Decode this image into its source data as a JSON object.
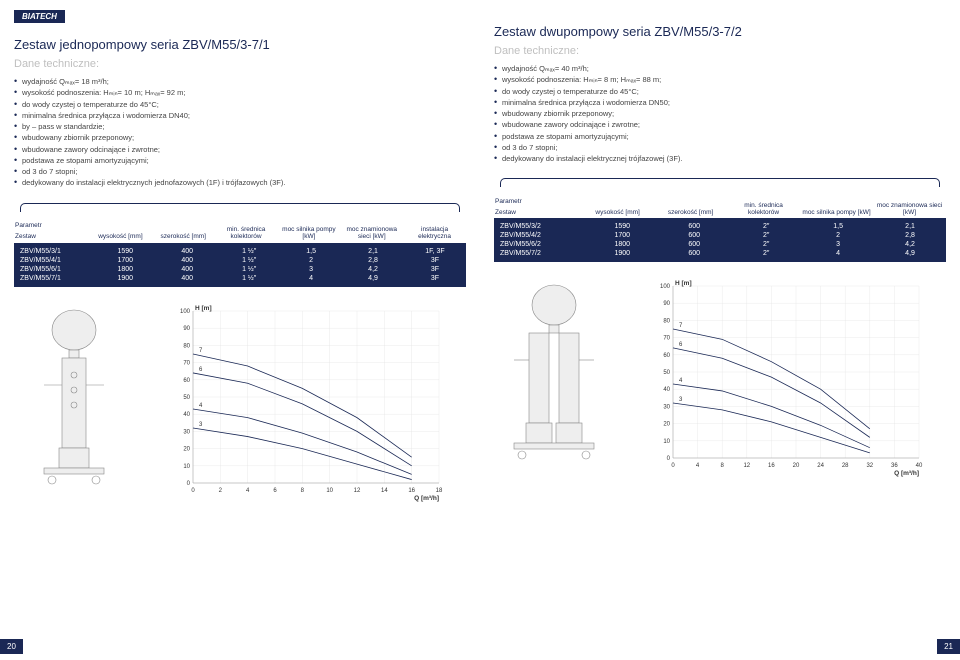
{
  "logo": "BIATECH",
  "left": {
    "title": "Zestaw jednopompowy seria ZBV/M55/3-7/1",
    "subtitle": "Dane techniczne:",
    "bullets": [
      "wydajność Qₘₐₓ= 18 m³/h;",
      "wysokość podnoszenia: Hₘᵢₙ= 10 m; Hₘₐₓ= 92 m;",
      "do wody czystej o temperaturze do 45°C;",
      "minimalna średnica przyłącza i wodomierza DN40;",
      "by – pass w standardzie;",
      "wbudowany zbiornik przeponowy;",
      "wbudowane zawory odcinające i zwrotne;",
      "podstawa ze stopami amortyzującymi;",
      "od 3 do 7 stopni;",
      "dedykowany do instalacji elektrycznych jednofazowych (1F) i trójfazowych (3F)."
    ],
    "tableHeader": {
      "param": "Parametr",
      "zestaw": "Zestaw",
      "cols": [
        "wysokość [mm]",
        "szerokość [mm]",
        "min. średnica kolektorów",
        "moc silnika pompy [kW]",
        "moc znamionowa sieci [kW]",
        "instalacja elektryczna"
      ]
    },
    "tableRows": [
      [
        "ZBV/M55/3/1",
        "1590",
        "400",
        "1 ½″",
        "1,5",
        "2,1",
        "1F, 3F"
      ],
      [
        "ZBV/M55/4/1",
        "1700",
        "400",
        "1 ½″",
        "2",
        "2,8",
        "3F"
      ],
      [
        "ZBV/M55/6/1",
        "1800",
        "400",
        "1 ½″",
        "3",
        "4,2",
        "3F"
      ],
      [
        "ZBV/M55/7/1",
        "1900",
        "400",
        "1 ½″",
        "4",
        "4,9",
        "3F"
      ]
    ],
    "chart": {
      "xlabel": "Q [m³/h]",
      "ylabel": "H [m]",
      "xlim": [
        0,
        18
      ],
      "ylim": [
        0,
        100
      ],
      "xticks": [
        0,
        2,
        4,
        6,
        8,
        10,
        12,
        14,
        16,
        18
      ],
      "yticks": [
        0,
        10,
        20,
        30,
        40,
        50,
        60,
        70,
        80,
        90,
        100
      ],
      "curves": [
        [
          [
            0,
            32
          ],
          [
            4,
            27
          ],
          [
            8,
            20
          ],
          [
            12,
            11
          ],
          [
            16,
            2
          ]
        ],
        [
          [
            0,
            43
          ],
          [
            4,
            38
          ],
          [
            8,
            29
          ],
          [
            12,
            18
          ],
          [
            16,
            5
          ]
        ],
        [
          [
            0,
            64
          ],
          [
            4,
            58
          ],
          [
            8,
            46
          ],
          [
            12,
            30
          ],
          [
            16,
            10
          ]
        ],
        [
          [
            0,
            75
          ],
          [
            4,
            68
          ],
          [
            8,
            55
          ],
          [
            12,
            38
          ],
          [
            16,
            15
          ]
        ]
      ],
      "labels": [
        [
          "3",
          32
        ],
        [
          "4",
          43
        ],
        [
          "6",
          64
        ],
        [
          "7",
          75
        ]
      ]
    },
    "page": "20"
  },
  "right": {
    "title": "Zestaw dwupompowy seria ZBV/M55/3-7/2",
    "subtitle": "Dane techniczne:",
    "bullets": [
      "wydajność Qₘₐₓ= 40 m³/h;",
      "wysokość podnoszenia: Hₘᵢₙ= 8 m; Hₘₐₓ= 88 m;",
      "do wody czystej o temperaturze do 45°C;",
      "minimalna średnica przyłącza i wodomierza DN50;",
      "wbudowany zbiornik przeponowy;",
      "wbudowane zawory odcinające i zwrotne;",
      "podstawa ze stopami amortyzującymi;",
      "od 3 do 7 stopni;",
      "dedykowany do instalacji elektrycznej trójfazowej (3F)."
    ],
    "tableHeader": {
      "param": "Parametr",
      "zestaw": "Zestaw",
      "cols": [
        "wysokość [mm]",
        "szerokość [mm]",
        "min. średnica kolektorów",
        "moc silnika pompy [kW]",
        "moc znamionowa sieci [kW]"
      ]
    },
    "tableRows": [
      [
        "ZBV/M55/3/2",
        "1590",
        "600",
        "2″",
        "1,5",
        "2,1"
      ],
      [
        "ZBV/M55/4/2",
        "1700",
        "600",
        "2″",
        "2",
        "2,8"
      ],
      [
        "ZBV/M55/6/2",
        "1800",
        "600",
        "2″",
        "3",
        "4,2"
      ],
      [
        "ZBV/M55/7/2",
        "1900",
        "600",
        "2″",
        "4",
        "4,9"
      ]
    ],
    "chart": {
      "xlabel": "Q [m³/h]",
      "ylabel": "H [m]",
      "xlim": [
        0,
        40
      ],
      "ylim": [
        0,
        100
      ],
      "xticks": [
        0,
        4,
        8,
        12,
        16,
        20,
        24,
        28,
        32,
        36,
        40
      ],
      "yticks": [
        0,
        10,
        20,
        30,
        40,
        50,
        60,
        70,
        80,
        90,
        100
      ],
      "curves": [
        [
          [
            0,
            32
          ],
          [
            8,
            28
          ],
          [
            16,
            21
          ],
          [
            24,
            12
          ],
          [
            32,
            3
          ]
        ],
        [
          [
            0,
            43
          ],
          [
            8,
            39
          ],
          [
            16,
            30
          ],
          [
            24,
            19
          ],
          [
            32,
            6
          ]
        ],
        [
          [
            0,
            64
          ],
          [
            8,
            58
          ],
          [
            16,
            47
          ],
          [
            24,
            32
          ],
          [
            32,
            12
          ]
        ],
        [
          [
            0,
            75
          ],
          [
            8,
            69
          ],
          [
            16,
            56
          ],
          [
            24,
            40
          ],
          [
            32,
            17
          ]
        ]
      ],
      "labels": [
        [
          "3",
          32
        ],
        [
          "4",
          43
        ],
        [
          "6",
          64
        ],
        [
          "7",
          75
        ]
      ]
    },
    "page": "21"
  }
}
